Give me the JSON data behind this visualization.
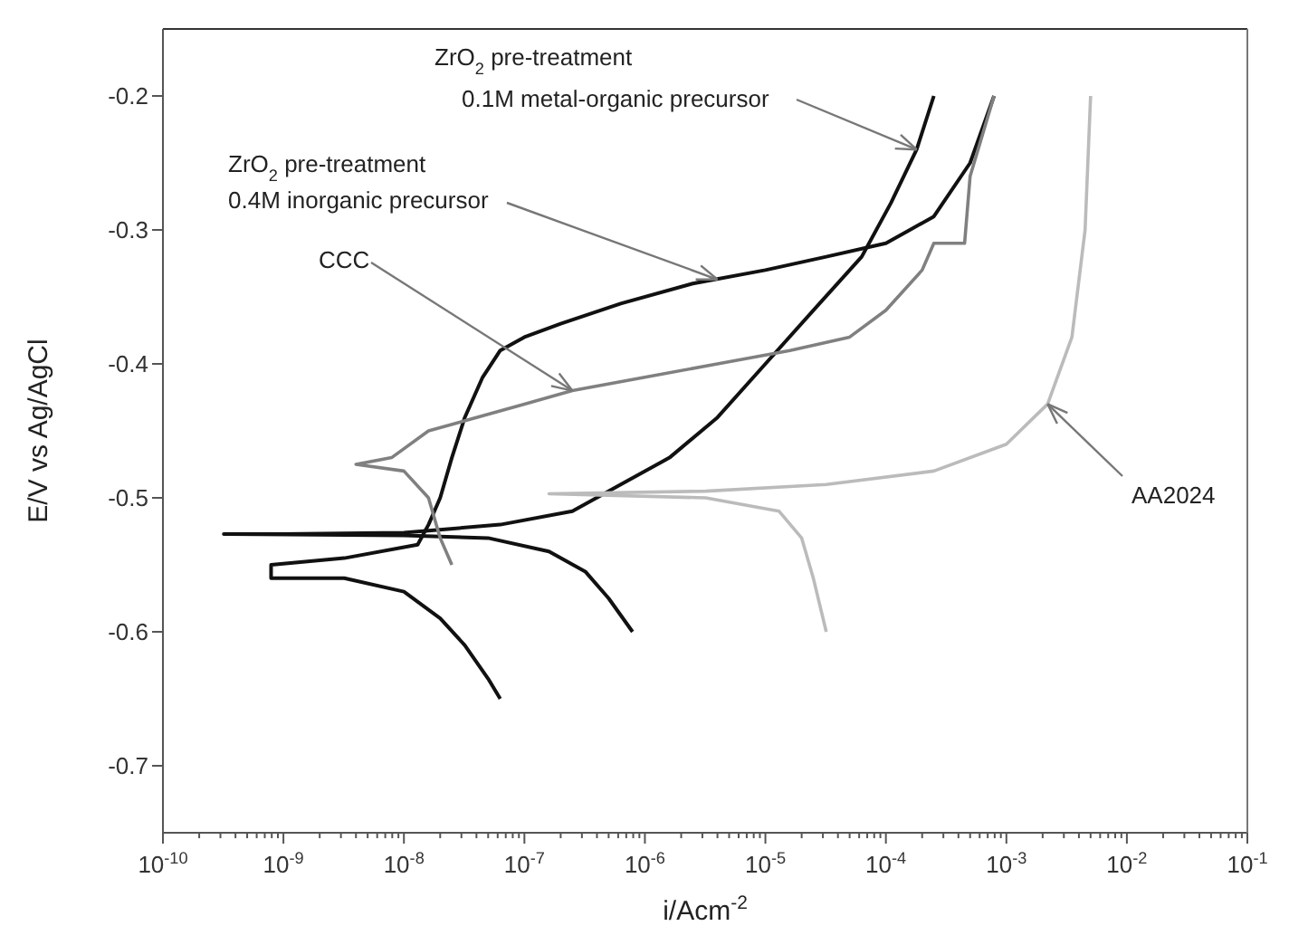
{
  "chart_data": {
    "type": "line",
    "xlabel": "i/Acm$^{-2}$",
    "ylabel": "E/V vs Ag/AgCl",
    "log": "x",
    "marker": "none",
    "line_style": "solid",
    "xlim": [
      1e-10,
      0.1
    ],
    "ylim": [
      -0.75,
      -0.15
    ],
    "yticks": [
      -0.7,
      -0.6,
      -0.5,
      -0.4,
      -0.3,
      -0.2
    ],
    "xticks": [
      {
        "value": 1e-10,
        "label": "10$^{-10}$"
      },
      {
        "value": 2e-10,
        "label": null
      },
      {
        "value": 3e-10,
        "label": null
      },
      {
        "value": 4e-10,
        "label": null
      },
      {
        "value": 5e-10,
        "label": null
      },
      {
        "value": 6e-10,
        "label": null
      },
      {
        "value": 7e-10,
        "label": null
      },
      {
        "value": 8e-10,
        "label": null
      },
      {
        "value": 9e-10,
        "label": null
      },
      {
        "value": 1e-09,
        "label": "10$^{-9}$"
      },
      {
        "value": 2e-09,
        "label": null
      },
      {
        "value": 3e-09,
        "label": null
      },
      {
        "value": 4e-09,
        "label": null
      },
      {
        "value": 5e-09,
        "label": null
      },
      {
        "value": 6e-09,
        "label": null
      },
      {
        "value": 7e-09,
        "label": null
      },
      {
        "value": 8e-09,
        "label": null
      },
      {
        "value": 9e-09,
        "label": null
      },
      {
        "value": 1e-08,
        "label": "10$^{-8}$"
      },
      {
        "value": 2e-08,
        "label": null
      },
      {
        "value": 3e-08,
        "label": null
      },
      {
        "value": 4e-08,
        "label": null
      },
      {
        "value": 5e-08,
        "label": null
      },
      {
        "value": 6e-08,
        "label": null
      },
      {
        "value": 7e-08,
        "label": null
      },
      {
        "value": 8e-08,
        "label": null
      },
      {
        "value": 9e-08,
        "label": null
      },
      {
        "value": 1e-07,
        "label": "10$^{-7}$"
      },
      {
        "value": 2e-07,
        "label": null
      },
      {
        "value": 3e-07,
        "label": null
      },
      {
        "value": 4e-07,
        "label": null
      },
      {
        "value": 5e-07,
        "label": null
      },
      {
        "value": 6e-07,
        "label": null
      },
      {
        "value": 7e-07,
        "label": null
      },
      {
        "value": 8e-07,
        "label": null
      },
      {
        "value": 9e-07,
        "label": null
      },
      {
        "value": 1e-06,
        "label": "10$^{-6}$"
      },
      {
        "value": 2e-06,
        "label": null
      },
      {
        "value": 3e-06,
        "label": null
      },
      {
        "value": 4e-06,
        "label": null
      },
      {
        "value": 5e-06,
        "label": null
      },
      {
        "value": 6e-06,
        "label": null
      },
      {
        "value": 7e-06,
        "label": null
      },
      {
        "value": 8e-06,
        "label": null
      },
      {
        "value": 9e-06,
        "label": null
      },
      {
        "value": 1e-05,
        "label": "10$^{-5}$"
      },
      {
        "value": 2e-05,
        "label": null
      },
      {
        "value": 3e-05,
        "label": null
      },
      {
        "value": 4e-05,
        "label": null
      },
      {
        "value": 5e-05,
        "label": null
      },
      {
        "value": 6e-05,
        "label": null
      },
      {
        "value": 7e-05,
        "label": null
      },
      {
        "value": 8e-05,
        "label": null
      },
      {
        "value": 9e-05,
        "label": null
      },
      {
        "value": 0.0001,
        "label": "10$^{-4}$"
      },
      {
        "value": 0.0002,
        "label": null
      },
      {
        "value": 0.0003,
        "label": null
      },
      {
        "value": 0.0004,
        "label": null
      },
      {
        "value": 0.0005,
        "label": null
      },
      {
        "value": 0.0006,
        "label": null
      },
      {
        "value": 0.0007,
        "label": null
      },
      {
        "value": 0.0008,
        "label": null
      },
      {
        "value": 0.0009,
        "label": null
      },
      {
        "value": 0.001,
        "label": "10$^{-3}$"
      },
      {
        "value": 0.002,
        "label": null
      },
      {
        "value": 0.003,
        "label": null
      },
      {
        "value": 0.004,
        "label": null
      },
      {
        "value": 0.005,
        "label": null
      },
      {
        "value": 0.006,
        "label": null
      },
      {
        "value": 0.007,
        "label": null
      },
      {
        "value": 0.008,
        "label": null
      },
      {
        "value": 0.009,
        "label": null
      },
      {
        "value": 0.01,
        "label": "10$^{-2}$"
      },
      {
        "value": 0.02,
        "label": null
      },
      {
        "value": 0.03,
        "label": null
      },
      {
        "value": 0.04,
        "label": null
      },
      {
        "value": 0.05,
        "label": null
      },
      {
        "value": 0.06,
        "label": null
      },
      {
        "value": 0.07,
        "label": null
      },
      {
        "value": 0.08,
        "label": null
      },
      {
        "value": 0.09,
        "label": null
      },
      {
        "value": 0.1,
        "label": "10$^{-1}$"
      }
    ],
    "series": [
      {
        "color": "#111111",
        "x": [
          0.00079,
          0.0005,
          0.00025,
          0.0001,
          3.2e-05,
          1e-05,
          2.5e-06,
          6.3e-07,
          2e-07,
          1e-07,
          6.3e-08,
          4.5e-08,
          3.2e-08,
          2.5e-08,
          2e-08,
          1.6e-08,
          1.3e-08,
          3.2e-09,
          7.9e-10,
          7.9e-10,
          3.2e-09,
          1e-08,
          2e-08,
          3.2e-08,
          5e-08,
          6.3e-08
        ],
        "values": [
          -0.2,
          -0.25,
          -0.29,
          -0.31,
          -0.32,
          -0.33,
          -0.34,
          -0.355,
          -0.37,
          -0.38,
          -0.39,
          -0.41,
          -0.44,
          -0.47,
          -0.5,
          -0.52,
          -0.535,
          -0.545,
          -0.55,
          -0.56,
          -0.56,
          -0.57,
          -0.59,
          -0.61,
          -0.635,
          -0.65
        ]
      },
      {
        "color": "#111111",
        "x": [
          0.00025,
          0.00018,
          0.00011,
          6.3e-05,
          2.5e-05,
          1e-05,
          4e-06,
          1.6e-06,
          6.3e-07,
          2.5e-07,
          6.3e-08,
          1e-08,
          1e-09,
          3.2e-10,
          1e-08,
          5e-08,
          1.6e-07,
          3.2e-07,
          5e-07,
          7.9e-07
        ],
        "values": [
          -0.2,
          -0.24,
          -0.28,
          -0.32,
          -0.36,
          -0.4,
          -0.44,
          -0.47,
          -0.49,
          -0.51,
          -0.52,
          -0.526,
          -0.527,
          -0.527,
          -0.528,
          -0.53,
          -0.54,
          -0.555,
          -0.575,
          -0.6
        ]
      },
      {
        "color": "#808080",
        "x": [
          0.00079,
          0.0005,
          0.00045,
          0.00025,
          0.0002,
          0.0001,
          5e-05,
          1.6e-05,
          4e-06,
          1e-06,
          2.5e-07,
          1e-07,
          4e-08,
          1.6e-08,
          7.9e-09,
          4e-09,
          1e-08,
          1.6e-08,
          2e-08,
          2.5e-08
        ],
        "values": [
          -0.2,
          -0.26,
          -0.31,
          -0.31,
          -0.33,
          -0.36,
          -0.38,
          -0.39,
          -0.4,
          -0.41,
          -0.42,
          -0.43,
          -0.44,
          -0.45,
          -0.47,
          -0.475,
          -0.48,
          -0.5,
          -0.53,
          -0.55
        ]
      },
      {
        "color": "#bbbbbb",
        "x": [
          0.005,
          0.0045,
          0.0035,
          0.0022,
          0.001,
          0.00025,
          3.2e-05,
          3.2e-06,
          1.6e-07,
          3.2e-06,
          1.3e-05,
          2e-05,
          2.5e-05,
          3.2e-05
        ],
        "values": [
          -0.2,
          -0.3,
          -0.38,
          -0.43,
          -0.46,
          -0.48,
          -0.49,
          -0.495,
          -0.497,
          -0.5,
          -0.51,
          -0.53,
          -0.56,
          -0.6
        ]
      }
    ],
    "annotations": [
      {
        "text": "ZrO$_{2}$ pre-treatment\n0.1M metal-organic precursor",
        "x": 0.00018,
        "y": -0.24
      },
      {
        "text": "ZrO$_{2}$ pre-treatment\n0.4M inorganic precursor",
        "x": 4e-06,
        "y": -0.337
      },
      {
        "text": "CCC",
        "x": 2.5e-07,
        "y": -0.42
      },
      {
        "text": "AA2024",
        "x": 0.0022,
        "y": -0.43
      }
    ]
  }
}
